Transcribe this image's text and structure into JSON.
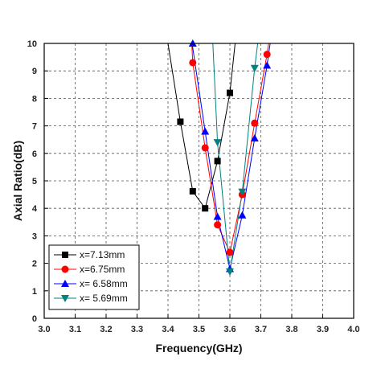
{
  "chart_data": {
    "type": "line",
    "xlabel": "Frequency(GHz)",
    "ylabel": "Axial Ratio(dB)",
    "xlim": [
      3.0,
      4.0
    ],
    "ylim": [
      0,
      10
    ],
    "x_ticks": [
      "3.0",
      "3.1",
      "3.2",
      "3.3",
      "3.4",
      "3.5",
      "3.6",
      "3.7",
      "3.8",
      "3.9",
      "4.0"
    ],
    "y_ticks": [
      "0",
      "1",
      "2",
      "3",
      "4",
      "5",
      "6",
      "7",
      "8",
      "9",
      "10"
    ],
    "grid": true,
    "legend_position": "bottom-left",
    "series": [
      {
        "name": "x=7.13mm",
        "color": "#000000",
        "marker": "square",
        "points": [
          [
            3.44,
            7.15
          ],
          [
            3.48,
            4.62
          ],
          [
            3.52,
            4.0
          ],
          [
            3.56,
            5.72
          ],
          [
            3.6,
            8.2
          ]
        ],
        "curve": [
          [
            3.4,
            10.0
          ],
          [
            3.44,
            7.15
          ],
          [
            3.48,
            4.62
          ],
          [
            3.52,
            4.0
          ],
          [
            3.56,
            5.72
          ],
          [
            3.6,
            8.2
          ],
          [
            3.617,
            10.0
          ]
        ]
      },
      {
        "name": "x=6.75mm",
        "color": "#ff0000",
        "marker": "circle",
        "points": [
          [
            3.48,
            9.3
          ],
          [
            3.52,
            6.2
          ],
          [
            3.56,
            3.4
          ],
          [
            3.6,
            2.4
          ],
          [
            3.64,
            4.5
          ],
          [
            3.68,
            7.1
          ],
          [
            3.72,
            9.6
          ]
        ],
        "curve": [
          [
            3.477,
            10.0
          ],
          [
            3.48,
            9.3
          ],
          [
            3.52,
            6.2
          ],
          [
            3.56,
            3.4
          ],
          [
            3.6,
            2.4
          ],
          [
            3.64,
            4.5
          ],
          [
            3.68,
            7.1
          ],
          [
            3.72,
            9.6
          ],
          [
            3.725,
            10.0
          ]
        ]
      },
      {
        "name": "x= 6.58mm",
        "color": "#0000ff",
        "marker": "triangle-up",
        "points": [
          [
            3.48,
            10.0
          ],
          [
            3.52,
            6.8
          ],
          [
            3.56,
            3.7
          ],
          [
            3.6,
            1.8
          ],
          [
            3.64,
            3.75
          ],
          [
            3.68,
            6.55
          ],
          [
            3.72,
            9.2
          ]
        ],
        "curve": [
          [
            3.478,
            10.0
          ],
          [
            3.52,
            6.8
          ],
          [
            3.56,
            3.7
          ],
          [
            3.6,
            1.8
          ],
          [
            3.64,
            3.75
          ],
          [
            3.68,
            6.55
          ],
          [
            3.72,
            9.2
          ],
          [
            3.73,
            10.0
          ]
        ]
      },
      {
        "name": "x= 5.69mm",
        "color": "#008080",
        "marker": "triangle-down",
        "points": [
          [
            3.56,
            6.4
          ],
          [
            3.6,
            1.7
          ],
          [
            3.64,
            4.6
          ],
          [
            3.68,
            9.1
          ]
        ],
        "curve": [
          [
            3.545,
            10.0
          ],
          [
            3.56,
            6.4
          ],
          [
            3.6,
            1.7
          ],
          [
            3.64,
            4.6
          ],
          [
            3.68,
            9.1
          ],
          [
            3.69,
            10.0
          ]
        ]
      }
    ]
  }
}
